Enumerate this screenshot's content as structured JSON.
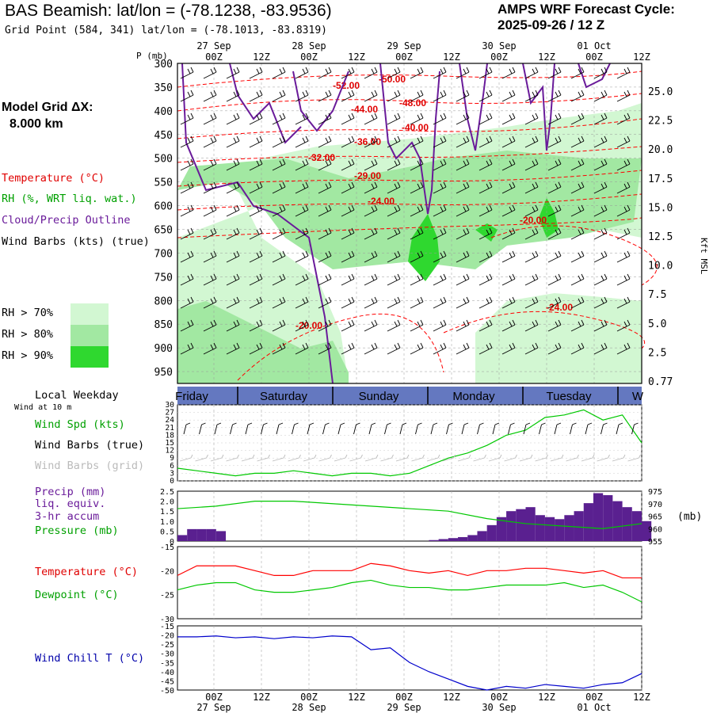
{
  "header": {
    "title": "BAS Beamish:  lat/lon = (-78.1238, -83.9536)",
    "grid_point": "Grid Point (584, 341) lat/lon = (-78.1013, -83.8319)",
    "forecast_line1": "AMPS WRF Forecast Cycle:",
    "forecast_line2": "2025-09-26 / 12  Z"
  },
  "time_axis": {
    "hour_labels": [
      "00Z",
      "12Z",
      "00Z",
      "12Z",
      "00Z",
      "12Z",
      "00Z",
      "12Z",
      "00Z",
      "12Z"
    ],
    "date_labels": [
      "27 Sep",
      "28 Sep",
      "29 Sep",
      "30 Sep",
      "01 Oct"
    ]
  },
  "left_panel": {
    "model_grid_line1": "Model Grid ΔX:",
    "model_grid_line2": "8.000 km",
    "legend_temperature": "Temperature (°C)",
    "legend_rh": "RH (%, WRT liq. wat.)",
    "legend_cloud": "Cloud/Precip Outline",
    "legend_wind": "Wind Barbs (kts) (true)",
    "rh_levels": [
      {
        "label": "RH > 70%",
        "color": "#d2f7d2"
      },
      {
        "label": "RH > 80%",
        "color": "#a2e8a2"
      },
      {
        "label": "RH > 90%",
        "color": "#2fd82f"
      }
    ],
    "local_weekday": "Local Weekday",
    "wind_at_10m": "Wind at 10 m",
    "wind_spd": "Wind Spd (kts)",
    "wind_barbs_true": "Wind Barbs (true)",
    "wind_barbs_grid": "Wind Barbs (grid)",
    "precip_line1": "Precip (mm)",
    "precip_line2": "liq. equiv.",
    "precip_line3": "3-hr accum",
    "pressure": "Pressure (mb)",
    "temperature": "Temperature (°C)",
    "dewpoint": "Dewpoint (°C)",
    "wind_chill": "Wind Chill T (°C)"
  },
  "colors": {
    "temperature": "#ff0000",
    "dewpoint": "#00c800",
    "cloud": "#6a1b9a",
    "precip": "#5a2090",
    "windchill": "#0000cc",
    "grid": "#888888",
    "weekday_band": "#6478c0"
  },
  "chart_data": [
    {
      "type": "heatmap",
      "description_axis": "pressure-time cross section",
      "pressure_label": "P (mb)",
      "pressure_ticks": [
        300,
        350,
        400,
        450,
        500,
        550,
        600,
        650,
        700,
        750,
        800,
        850,
        900,
        950
      ],
      "height_label": "Kft MSL",
      "height_ticks": [
        "25.0",
        "22.5",
        "20.0",
        "17.5",
        "15.0",
        "12.5",
        "10.0",
        "7.5",
        "5.0",
        "2.5",
        "0.77"
      ],
      "temperature_contour_labels": [
        "-52.00",
        "-50.00",
        "-44.00",
        "-48.00",
        "-40.00",
        "-36.00",
        "-32.00",
        "-29.00",
        "-24.00",
        "-20.00",
        "-24.00",
        "-20.00"
      ]
    },
    {
      "type": "line",
      "weekdays": [
        "Friday",
        "Saturday",
        "Sunday",
        "Monday",
        "Tuesday",
        "W"
      ],
      "ylabel": "Wind Spd (kts)",
      "yticks": [
        0,
        3,
        6,
        9,
        12,
        15,
        18,
        21,
        24,
        27,
        30
      ],
      "ylim": [
        0,
        30
      ],
      "x_hours": [
        0,
        6,
        12,
        18,
        24,
        30,
        36,
        42,
        48,
        54,
        60,
        66,
        72,
        78,
        84,
        90,
        96,
        102,
        108,
        114,
        120,
        126,
        132,
        138,
        144
      ],
      "wind_speed": [
        5,
        4,
        3,
        2,
        3,
        3,
        4,
        3,
        2,
        3,
        3,
        2,
        3,
        6,
        9,
        11,
        14,
        18,
        20,
        25,
        26,
        28,
        24,
        26,
        15
      ]
    },
    {
      "type": "bar",
      "ylabel_left": "Precip (mm)",
      "ylabel_right": "(mb)",
      "left_ticks": [
        "2.5",
        "2.0",
        "1.5",
        "1.0",
        "0.5",
        "0"
      ],
      "right_ticks": [
        "975",
        "970",
        "965",
        "960",
        "955"
      ],
      "ylim_precip": [
        0,
        2.5
      ],
      "ylim_pressure": [
        955,
        975
      ],
      "x_hours": [
        0,
        3,
        6,
        9,
        12,
        15,
        18,
        21,
        24,
        27,
        30,
        33,
        36,
        39,
        42,
        45,
        48,
        51,
        54,
        57,
        60,
        63,
        66,
        69,
        72,
        75,
        78,
        81,
        84,
        87,
        90,
        93,
        96,
        99,
        102,
        105,
        108,
        111,
        114,
        117,
        120,
        123,
        126,
        129,
        132,
        135,
        138,
        141,
        144
      ],
      "precip": [
        0.3,
        0.6,
        0.6,
        0.6,
        0.5,
        0,
        0,
        0,
        0,
        0,
        0,
        0,
        0,
        0,
        0,
        0,
        0,
        0,
        0,
        0,
        0,
        0,
        0,
        0,
        0,
        0,
        0.05,
        0.1,
        0.15,
        0.2,
        0.3,
        0.5,
        0.8,
        1.2,
        1.5,
        1.6,
        1.7,
        1.3,
        1.2,
        1.1,
        1.3,
        1.5,
        1.9,
        2.4,
        2.3,
        2.0,
        1.7,
        1.5,
        1.0
      ],
      "pressure_hours": [
        0,
        12,
        24,
        36,
        48,
        60,
        72,
        84,
        96,
        108,
        120,
        132,
        144
      ],
      "pressure": [
        968,
        969,
        971,
        971,
        970,
        969,
        968,
        967,
        964,
        962,
        961,
        960,
        962
      ]
    },
    {
      "type": "line",
      "ylabel": "Temperature (°C)",
      "yticks": [
        -15,
        -20,
        -25,
        -30
      ],
      "ylim": [
        -30,
        -15
      ],
      "x_hours": [
        0,
        6,
        12,
        18,
        24,
        30,
        36,
        42,
        48,
        54,
        60,
        66,
        72,
        78,
        84,
        90,
        96,
        102,
        108,
        114,
        120,
        126,
        132,
        138,
        144
      ],
      "temperature": [
        -21,
        -19,
        -19,
        -19,
        -20,
        -21,
        -21,
        -20,
        -20,
        -20,
        -18.5,
        -19,
        -20,
        -20.5,
        -20,
        -21,
        -20,
        -20,
        -19.5,
        -19.5,
        -20,
        -20.5,
        -20,
        -21.5,
        -21.5
      ],
      "dewpoint": [
        -24,
        -23,
        -22.5,
        -22.5,
        -24,
        -24.5,
        -24.5,
        -24,
        -23.5,
        -22.5,
        -22,
        -23,
        -23.5,
        -23.5,
        -24,
        -24,
        -23.5,
        -23,
        -23,
        -23,
        -22.5,
        -23.5,
        -23,
        -24.5,
        -26.5
      ]
    },
    {
      "type": "line",
      "ylabel": "Wind Chill T (°C)",
      "yticks": [
        -15,
        -20,
        -25,
        -30,
        -35,
        -40,
        -45,
        -50
      ],
      "ylim": [
        -50,
        -15
      ],
      "x_hours": [
        0,
        6,
        12,
        18,
        24,
        30,
        36,
        42,
        48,
        54,
        60,
        66,
        72,
        78,
        84,
        90,
        96,
        102,
        108,
        114,
        120,
        126,
        132,
        138,
        144
      ],
      "wind_chill": [
        -21,
        -21,
        -20.5,
        -21.5,
        -21,
        -22,
        -21,
        -21.5,
        -20.5,
        -21,
        -28,
        -27,
        -35,
        -40,
        -44,
        -48,
        -50,
        -48,
        -49,
        -47,
        -48,
        -49,
        -47,
        -46,
        -41
      ]
    }
  ]
}
